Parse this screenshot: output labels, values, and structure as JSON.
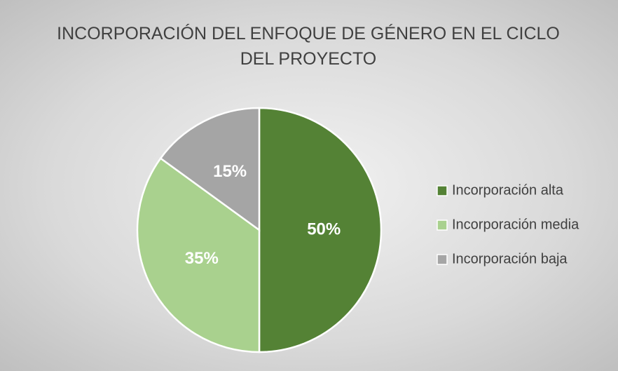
{
  "chart_data": {
    "type": "pie",
    "title": "INCORPORACIÓN DEL ENFOQUE DE GÉNERO EN EL CICLO DEL PROYECTO",
    "categories": [
      "Incorporación alta",
      "Incorporación media",
      "Incorporación baja"
    ],
    "values": [
      50,
      35,
      15
    ],
    "value_labels": [
      "50%",
      "35%",
      "15%"
    ],
    "colors": [
      "#548235",
      "#a9d18e",
      "#a5a5a5"
    ],
    "legend": "right"
  }
}
